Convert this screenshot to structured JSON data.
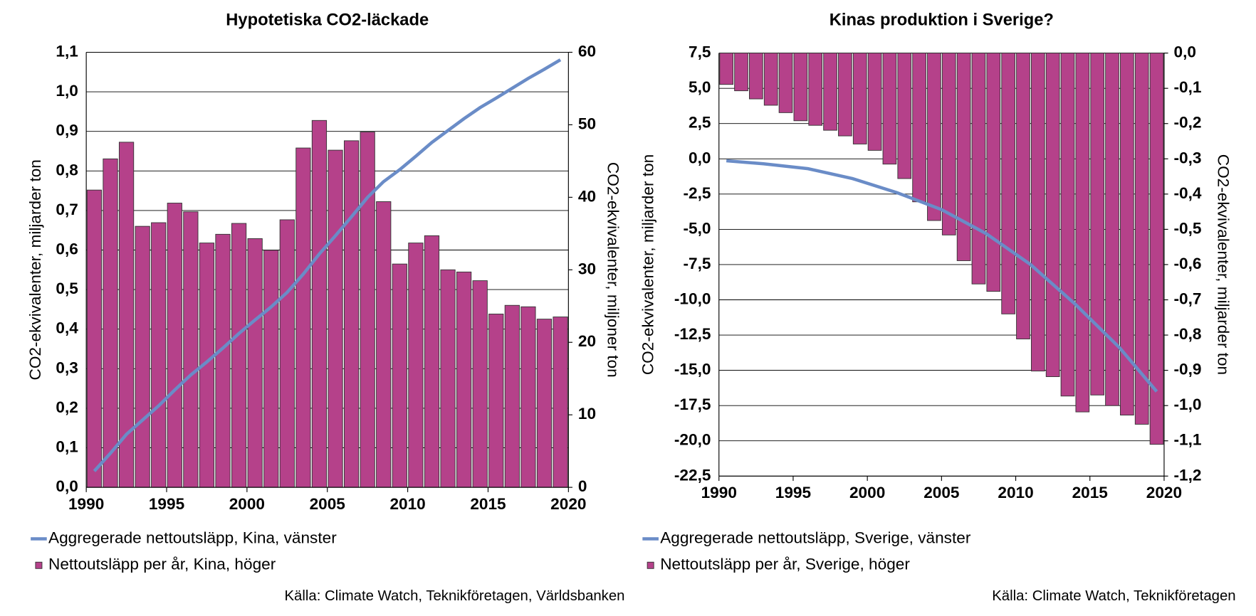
{
  "chart_data": [
    {
      "type": "combo",
      "title": "Hypotetiska CO2-läckade",
      "ylabel": "CO2-ekvivalenter, miljarder ton",
      "y2label": "CO2-ekvivalenter, miljoner ton",
      "source": "Källa: Climate Watch, Teknikföretagen, Världsbanken",
      "xlim": [
        1990,
        2020
      ],
      "xticks": [
        1990,
        1995,
        2000,
        2005,
        2010,
        2015,
        2020
      ],
      "ylim": [
        0,
        1.1
      ],
      "yticks": [
        {
          "value": 0,
          "label": "0,0"
        },
        {
          "value": 0.1,
          "label": "0,1"
        },
        {
          "value": 0.2,
          "label": "0,2"
        },
        {
          "value": 0.3,
          "label": "0,3"
        },
        {
          "value": 0.4,
          "label": "0,4"
        },
        {
          "value": 0.5,
          "label": "0,5"
        },
        {
          "value": 0.6,
          "label": "0,6"
        },
        {
          "value": 0.7,
          "label": "0,7"
        },
        {
          "value": 0.8,
          "label": "0,8"
        },
        {
          "value": 0.9,
          "label": "0,9"
        },
        {
          "value": 1.0,
          "label": "1,0"
        },
        {
          "value": 1.1,
          "label": "1,1"
        }
      ],
      "y2lim": [
        0,
        60
      ],
      "y2ticks": [
        0,
        10,
        20,
        30,
        40,
        50,
        60
      ],
      "grid": true,
      "series": [
        {
          "name": "Aggregerade nettoutsläpp, Kina, vänster",
          "type": "line",
          "axis": "y",
          "color": "#6a8cc7",
          "x": [
            1990.5,
            1991.5,
            1992.5,
            1993.5,
            1994.5,
            1995.5,
            1996.5,
            1997.5,
            1998.5,
            1999.5,
            2000.5,
            2001.5,
            2002.5,
            2003.5,
            2004.5,
            2005.5,
            2006.5,
            2007.5,
            2008.5,
            2009.5,
            2010.5,
            2011.5,
            2012.5,
            2013.5,
            2014.5,
            2015.5,
            2016.5,
            2017.5,
            2018.5,
            2019.5
          ],
          "values": [
            0.041,
            0.086,
            0.134,
            0.17,
            0.206,
            0.246,
            0.284,
            0.317,
            0.352,
            0.389,
            0.423,
            0.456,
            0.493,
            0.539,
            0.59,
            0.636,
            0.684,
            0.733,
            0.773,
            0.803,
            0.837,
            0.872,
            0.902,
            0.932,
            0.96,
            0.984,
            1.009,
            1.034,
            1.057,
            1.081
          ]
        },
        {
          "name": "Nettoutsläpp per år, Kina, höger",
          "type": "bar",
          "axis": "y2",
          "color": "#b5418a",
          "x": [
            1990,
            1991,
            1992,
            1993,
            1994,
            1995,
            1996,
            1997,
            1998,
            1999,
            2000,
            2001,
            2002,
            2003,
            2004,
            2005,
            2006,
            2007,
            2008,
            2009,
            2010,
            2011,
            2012,
            2013,
            2014,
            2015,
            2016,
            2017,
            2018,
            2019
          ],
          "values": [
            41.0,
            45.3,
            47.6,
            36.0,
            36.5,
            39.2,
            38.0,
            33.7,
            34.9,
            36.4,
            34.3,
            32.7,
            36.9,
            46.8,
            50.6,
            46.5,
            47.8,
            49.0,
            39.4,
            30.8,
            33.7,
            34.7,
            30.0,
            29.7,
            28.5,
            23.9,
            25.1,
            24.9,
            23.2,
            23.5
          ]
        }
      ]
    },
    {
      "type": "combo",
      "title": "Kinas produktion i Sverige?",
      "ylabel": "CO2-ekvivalenter, miljarder ton",
      "y2label": "CO2-ekvivalenter, miljarder ton",
      "source": "Källa: Climate Watch, Teknikföretagen",
      "xlim": [
        1990,
        2020
      ],
      "xticks": [
        1990,
        1995,
        2000,
        2005,
        2010,
        2015,
        2020
      ],
      "ylim": [
        -22.5,
        7.5
      ],
      "yticks": [
        {
          "value": -22.5,
          "label": "-22,5"
        },
        {
          "value": -20,
          "label": "-20,0"
        },
        {
          "value": -17.5,
          "label": "-17,5"
        },
        {
          "value": -15,
          "label": "-15,0"
        },
        {
          "value": -12.5,
          "label": "-12,5"
        },
        {
          "value": -10,
          "label": "-10,0"
        },
        {
          "value": -7.5,
          "label": "-7,5"
        },
        {
          "value": -5,
          "label": "-5,0"
        },
        {
          "value": -2.5,
          "label": "-2,5"
        },
        {
          "value": 0,
          "label": "0,0"
        },
        {
          "value": 2.5,
          "label": "2,5"
        },
        {
          "value": 5,
          "label": "5,0"
        },
        {
          "value": 7.5,
          "label": "7,5"
        }
      ],
      "y2lim": [
        -1.2,
        0
      ],
      "y2ticks": [
        {
          "value": -1.2,
          "label": "-1,2"
        },
        {
          "value": -1.1,
          "label": "-1,1"
        },
        {
          "value": -1.0,
          "label": "-1,0"
        },
        {
          "value": -0.9,
          "label": "-0,9"
        },
        {
          "value": -0.8,
          "label": "-0,8"
        },
        {
          "value": -0.7,
          "label": "-0,7"
        },
        {
          "value": -0.6,
          "label": "-0,6"
        },
        {
          "value": -0.5,
          "label": "-0,5"
        },
        {
          "value": -0.4,
          "label": "-0,4"
        },
        {
          "value": -0.3,
          "label": "-0,3"
        },
        {
          "value": -0.2,
          "label": "-0,2"
        },
        {
          "value": -0.1,
          "label": "-0,1"
        },
        {
          "value": 0,
          "label": "0,0"
        }
      ],
      "grid": true,
      "series": [
        {
          "name": "Aggregerade nettoutsläpp, Sverige, vänster",
          "type": "line",
          "axis": "y",
          "color": "#6a8cc7",
          "x": [
            1990.5,
            1993,
            1996,
            1999,
            2002,
            2005,
            2008,
            2011,
            2014,
            2017,
            2019.5
          ],
          "values": [
            -0.14,
            -0.35,
            -0.7,
            -1.4,
            -2.4,
            -3.6,
            -5.3,
            -7.5,
            -10.3,
            -13.4,
            -16.5
          ]
        },
        {
          "name": "Nettoutsläpp per år, Sverige, höger",
          "type": "bar",
          "axis": "y2",
          "color": "#b5418a",
          "x": [
            1990,
            1991,
            1992,
            1993,
            1994,
            1995,
            1996,
            1997,
            1998,
            1999,
            2000,
            2001,
            2002,
            2003,
            2004,
            2005,
            2006,
            2007,
            2008,
            2009,
            2010,
            2011,
            2012,
            2013,
            2014,
            2015,
            2016,
            2017,
            2018,
            2019
          ],
          "values": [
            -0.089,
            -0.107,
            -0.13,
            -0.148,
            -0.169,
            -0.192,
            -0.205,
            -0.219,
            -0.235,
            -0.258,
            -0.276,
            -0.315,
            -0.356,
            -0.422,
            -0.475,
            -0.516,
            -0.589,
            -0.655,
            -0.676,
            -0.74,
            -0.811,
            -0.902,
            -0.918,
            -0.973,
            -1.018,
            -0.97,
            -1.0,
            -1.027,
            -1.053,
            -1.11
          ]
        }
      ]
    }
  ]
}
